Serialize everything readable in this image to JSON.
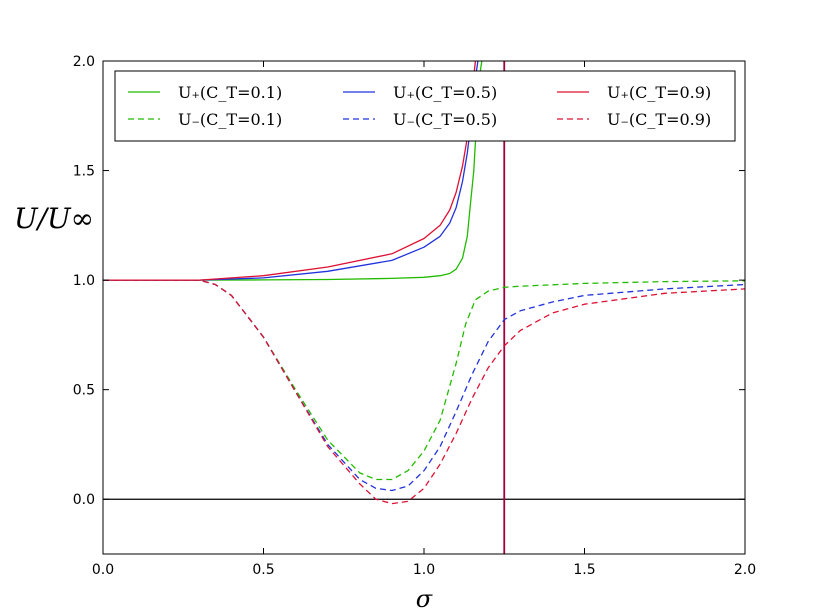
{
  "chart_data": {
    "type": "line",
    "title": "",
    "xlabel": "σ",
    "ylabel": "U/U∞",
    "xlim": [
      0.0,
      2.0
    ],
    "ylim": [
      -0.25,
      2.0
    ],
    "xticks": [
      "0.0",
      "0.5",
      "1.0",
      "1.5",
      "2.0"
    ],
    "xtick_values": [
      0.0,
      0.5,
      1.0,
      1.5,
      2.0
    ],
    "yticks": [
      "0.0",
      "0.5",
      "1.0",
      "1.5",
      "2.0"
    ],
    "ytick_values": [
      0.0,
      0.5,
      1.0,
      1.5,
      2.0
    ],
    "grid": false,
    "legend": {
      "placement": "top",
      "columns": 3
    },
    "reference_lines": [
      {
        "orientation": "horizontal",
        "y": 0.0,
        "color": "#000000"
      },
      {
        "orientation": "vertical",
        "x": 1.25,
        "color": "#a0003c"
      }
    ],
    "series": [
      {
        "name": "U₊(C_T=0.1)",
        "color": "#22bb00",
        "style": "solid",
        "x": [
          0.0,
          0.3,
          0.5,
          0.7,
          0.9,
          1.0,
          1.05,
          1.08,
          1.1,
          1.12,
          1.135,
          1.145,
          1.155,
          1.163,
          1.17,
          1.175,
          1.18
        ],
        "y": [
          1.0,
          1.0,
          1.001,
          1.003,
          1.008,
          1.013,
          1.02,
          1.03,
          1.05,
          1.1,
          1.2,
          1.35,
          1.5,
          1.7,
          1.85,
          1.95,
          2.0
        ]
      },
      {
        "name": "U₋(C_T=0.1)",
        "color": "#22bb00",
        "style": "dashed",
        "x": [
          0.0,
          0.3,
          0.35,
          0.4,
          0.5,
          0.6,
          0.7,
          0.8,
          0.85,
          0.9,
          0.95,
          1.0,
          1.05,
          1.1,
          1.13,
          1.16,
          1.2,
          1.25,
          1.3,
          1.5,
          1.75,
          2.0
        ],
        "y": [
          1.0,
          1.0,
          0.98,
          0.93,
          0.74,
          0.5,
          0.27,
          0.12,
          0.09,
          0.09,
          0.13,
          0.22,
          0.36,
          0.62,
          0.8,
          0.91,
          0.95,
          0.967,
          0.972,
          0.985,
          0.993,
          0.997
        ]
      },
      {
        "name": "U₊(C_T=0.5)",
        "color": "#2233dd",
        "style": "solid",
        "x": [
          0.0,
          0.3,
          0.5,
          0.7,
          0.9,
          1.0,
          1.05,
          1.08,
          1.1,
          1.12,
          1.135,
          1.145,
          1.155,
          1.163,
          1.168
        ],
        "y": [
          1.0,
          1.0,
          1.01,
          1.04,
          1.09,
          1.15,
          1.2,
          1.26,
          1.33,
          1.45,
          1.58,
          1.7,
          1.83,
          1.95,
          2.0
        ]
      },
      {
        "name": "U₋(C_T=0.5)",
        "color": "#2233dd",
        "style": "dashed",
        "x": [
          0.0,
          0.3,
          0.35,
          0.4,
          0.5,
          0.6,
          0.7,
          0.8,
          0.85,
          0.9,
          0.95,
          1.0,
          1.05,
          1.1,
          1.15,
          1.2,
          1.25,
          1.3,
          1.4,
          1.5,
          1.75,
          2.0
        ],
        "y": [
          1.0,
          1.0,
          0.98,
          0.93,
          0.74,
          0.49,
          0.25,
          0.09,
          0.05,
          0.04,
          0.06,
          0.13,
          0.24,
          0.4,
          0.57,
          0.72,
          0.82,
          0.86,
          0.9,
          0.93,
          0.96,
          0.98
        ]
      },
      {
        "name": "U₊(C_T=0.9)",
        "color": "#dd1133",
        "style": "solid",
        "x": [
          0.0,
          0.3,
          0.5,
          0.7,
          0.9,
          1.0,
          1.05,
          1.08,
          1.1,
          1.12,
          1.135,
          1.145,
          1.155,
          1.16
        ],
        "y": [
          1.0,
          1.0,
          1.02,
          1.06,
          1.12,
          1.19,
          1.25,
          1.32,
          1.4,
          1.52,
          1.65,
          1.78,
          1.93,
          2.0
        ]
      },
      {
        "name": "U₋(C_T=0.9)",
        "color": "#dd1133",
        "style": "dashed",
        "x": [
          0.0,
          0.3,
          0.35,
          0.4,
          0.5,
          0.6,
          0.7,
          0.8,
          0.85,
          0.9,
          0.95,
          1.0,
          1.05,
          1.1,
          1.15,
          1.2,
          1.25,
          1.3,
          1.4,
          1.5,
          1.75,
          2.0
        ],
        "y": [
          1.0,
          1.0,
          0.98,
          0.93,
          0.74,
          0.49,
          0.24,
          0.07,
          0.0,
          -0.02,
          -0.01,
          0.05,
          0.16,
          0.3,
          0.46,
          0.6,
          0.7,
          0.77,
          0.85,
          0.89,
          0.94,
          0.96
        ]
      }
    ]
  }
}
